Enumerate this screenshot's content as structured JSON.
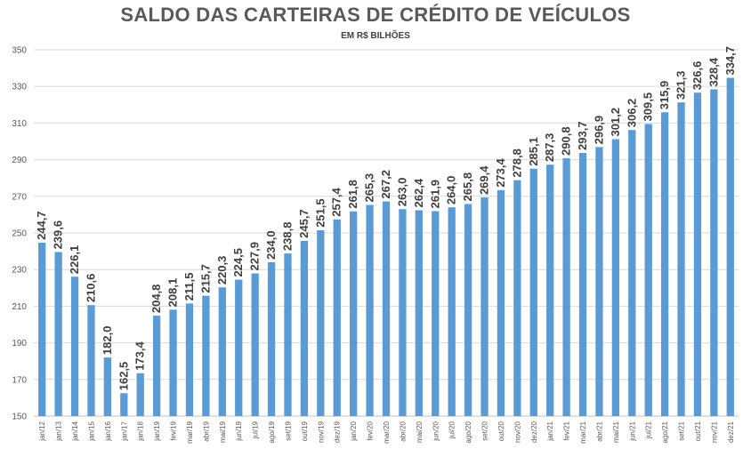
{
  "chart_data": {
    "type": "bar",
    "title": "SALDO DAS CARTEIRAS DE CRÉDITO DE VEÍCULOS",
    "subtitle": "EM R$ BILHÕES",
    "xlabel": "",
    "ylabel": "",
    "ylim": [
      150,
      350
    ],
    "yticks": [
      150,
      170,
      190,
      210,
      230,
      250,
      270,
      290,
      310,
      330,
      350
    ],
    "grid": true,
    "bar_color": "#5b9bd5",
    "grid_color": "#d9d9d9",
    "categories": [
      "jan/12",
      "jan/13",
      "jan/14",
      "jan/15",
      "jan/16",
      "jan/17",
      "jan/18",
      "jan/19",
      "fev/19",
      "mar/19",
      "abr/19",
      "mai/19",
      "jun/19",
      "jul/19",
      "ago/19",
      "set/19",
      "out/19",
      "nov/19",
      "dez/19",
      "jan/20",
      "fev/20",
      "mar/20",
      "abr/20",
      "mai/20",
      "jun/20",
      "jul/20",
      "ago/20",
      "set/20",
      "out/20",
      "nov/20",
      "dez/20",
      "jan/21",
      "fev/21",
      "mar/21",
      "abr/21",
      "mai/21",
      "jun/21",
      "jul/21",
      "ago/21",
      "set/21",
      "out/21",
      "nov/21",
      "dez/21"
    ],
    "values": [
      244.7,
      239.6,
      226.1,
      210.6,
      182.0,
      162.5,
      173.4,
      204.8,
      208.1,
      211.5,
      215.7,
      220.3,
      224.5,
      227.9,
      234.0,
      238.8,
      245.7,
      251.5,
      257.4,
      261.8,
      265.3,
      267.2,
      263.0,
      262.4,
      261.9,
      264.0,
      265.8,
      269.4,
      273.4,
      278.8,
      285.1,
      287.3,
      290.8,
      293.7,
      296.9,
      301.2,
      306.2,
      309.5,
      315.9,
      321.3,
      326.6,
      328.4,
      334.7
    ],
    "value_labels": [
      "244,7",
      "239,6",
      "226,1",
      "210,6",
      "182,0",
      "162,5",
      "173,4",
      "204,8",
      "208,1",
      "211,5",
      "215,7",
      "220,3",
      "224,5",
      "227,9",
      "234,0",
      "238,8",
      "245,7",
      "251,5",
      "257,4",
      "261,8",
      "265,3",
      "267,2",
      "263,0",
      "262,4",
      "261,9",
      "264,0",
      "265,8",
      "269,4",
      "273,4",
      "278,8",
      "285,1",
      "287,3",
      "290,8",
      "293,7",
      "296,9",
      "301,2",
      "306,2",
      "309,5",
      "315,9",
      "321,3",
      "326,6",
      "328,4",
      "334,7"
    ]
  }
}
